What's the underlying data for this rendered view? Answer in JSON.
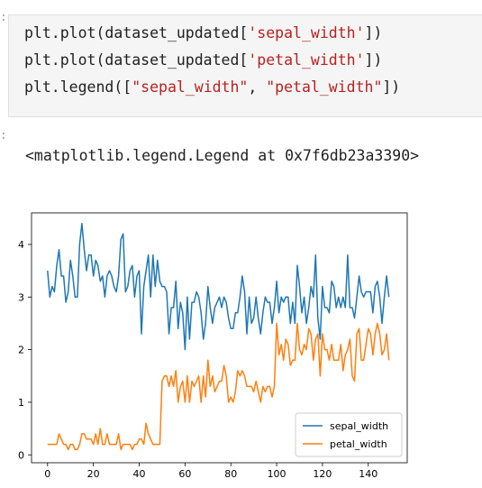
{
  "notebook": {
    "in_prompt": ":",
    "out_prompt": ":",
    "code_lines": [
      {
        "pre": "plt.plot(dataset_updated[",
        "str": "'sepal_width'",
        "post": "])"
      },
      {
        "pre": "plt.plot(dataset_updated[",
        "str": "'petal_width'",
        "post": "])"
      },
      {
        "pre": "plt.legend([",
        "str": "\"sepal_width\"",
        "mid": ", ",
        "str2": "\"petal_width\"",
        "post": "])"
      }
    ],
    "output_text": "<matplotlib.legend.Legend at 0x7f6db23a3390>"
  },
  "colors": {
    "string": "#ba2121",
    "series1": "#1f77b4",
    "series2": "#ff7f0e"
  },
  "chart_data": {
    "type": "line",
    "xlim": [
      -7,
      157
    ],
    "ylim": [
      -0.15,
      4.6
    ],
    "xticks": [
      0,
      20,
      40,
      60,
      80,
      100,
      120,
      140
    ],
    "yticks": [
      0,
      1,
      2,
      3,
      4
    ],
    "legend": "lower-right",
    "grid": false,
    "x": [
      0,
      1,
      2,
      3,
      4,
      5,
      6,
      7,
      8,
      9,
      10,
      11,
      12,
      13,
      14,
      15,
      16,
      17,
      18,
      19,
      20,
      21,
      22,
      23,
      24,
      25,
      26,
      27,
      28,
      29,
      30,
      31,
      32,
      33,
      34,
      35,
      36,
      37,
      38,
      39,
      40,
      41,
      42,
      43,
      44,
      45,
      46,
      47,
      48,
      49,
      50,
      51,
      52,
      53,
      54,
      55,
      56,
      57,
      58,
      59,
      60,
      61,
      62,
      63,
      64,
      65,
      66,
      67,
      68,
      69,
      70,
      71,
      72,
      73,
      74,
      75,
      76,
      77,
      78,
      79,
      80,
      81,
      82,
      83,
      84,
      85,
      86,
      87,
      88,
      89,
      90,
      91,
      92,
      93,
      94,
      95,
      96,
      97,
      98,
      99,
      100,
      101,
      102,
      103,
      104,
      105,
      106,
      107,
      108,
      109,
      110,
      111,
      112,
      113,
      114,
      115,
      116,
      117,
      118,
      119,
      120,
      121,
      122,
      123,
      124,
      125,
      126,
      127,
      128,
      129,
      130,
      131,
      132,
      133,
      134,
      135,
      136,
      137,
      138,
      139,
      140,
      141,
      142,
      143,
      144,
      145,
      146,
      147,
      148,
      149
    ],
    "series": [
      {
        "name": "sepal_width",
        "values": [
          3.5,
          3.0,
          3.2,
          3.1,
          3.6,
          3.9,
          3.4,
          3.4,
          2.9,
          3.1,
          3.7,
          3.4,
          3.0,
          3.0,
          4.0,
          4.4,
          3.9,
          3.5,
          3.8,
          3.8,
          3.4,
          3.7,
          3.6,
          3.3,
          3.4,
          3.0,
          3.4,
          3.5,
          3.4,
          3.2,
          3.1,
          3.4,
          4.1,
          4.2,
          3.1,
          3.2,
          3.5,
          3.6,
          3.0,
          3.4,
          3.5,
          2.3,
          3.2,
          3.5,
          3.8,
          3.0,
          3.8,
          3.2,
          3.7,
          3.3,
          3.2,
          3.2,
          3.1,
          2.3,
          2.8,
          2.8,
          3.3,
          2.4,
          2.9,
          2.7,
          2.0,
          3.0,
          2.2,
          2.9,
          2.9,
          3.1,
          3.0,
          2.7,
          2.2,
          2.5,
          3.2,
          2.8,
          2.5,
          2.8,
          2.9,
          3.0,
          2.8,
          3.0,
          2.9,
          2.6,
          2.4,
          2.4,
          2.7,
          2.7,
          3.0,
          3.4,
          3.1,
          2.3,
          3.0,
          2.5,
          2.6,
          3.0,
          2.6,
          2.3,
          2.7,
          3.0,
          2.9,
          2.9,
          2.5,
          2.8,
          3.3,
          2.7,
          3.0,
          2.9,
          3.0,
          3.0,
          2.5,
          2.9,
          2.5,
          3.6,
          3.2,
          2.7,
          3.0,
          2.5,
          2.8,
          3.2,
          3.0,
          3.8,
          2.6,
          2.2,
          3.2,
          2.8,
          2.8,
          2.7,
          3.3,
          3.2,
          2.8,
          3.0,
          2.8,
          3.0,
          2.8,
          3.8,
          2.8,
          2.8,
          2.6,
          3.0,
          3.4,
          3.1,
          3.0,
          3.1,
          3.1,
          3.1,
          2.7,
          3.2,
          3.3,
          3.0,
          2.5,
          3.0,
          3.4,
          3.0
        ]
      },
      {
        "name": "petal_width",
        "values": [
          0.2,
          0.2,
          0.2,
          0.2,
          0.2,
          0.4,
          0.3,
          0.2,
          0.2,
          0.1,
          0.2,
          0.2,
          0.1,
          0.1,
          0.2,
          0.4,
          0.4,
          0.3,
          0.3,
          0.3,
          0.2,
          0.4,
          0.2,
          0.5,
          0.2,
          0.2,
          0.4,
          0.2,
          0.2,
          0.2,
          0.2,
          0.4,
          0.1,
          0.2,
          0.2,
          0.2,
          0.2,
          0.1,
          0.2,
          0.2,
          0.3,
          0.3,
          0.2,
          0.6,
          0.4,
          0.3,
          0.2,
          0.2,
          0.2,
          0.2,
          1.4,
          1.5,
          1.5,
          1.3,
          1.5,
          1.3,
          1.6,
          1.0,
          1.3,
          1.4,
          1.0,
          1.5,
          1.0,
          1.4,
          1.3,
          1.4,
          1.5,
          1.0,
          1.5,
          1.1,
          1.8,
          1.3,
          1.5,
          1.2,
          1.3,
          1.4,
          1.4,
          1.7,
          1.5,
          1.0,
          1.1,
          1.0,
          1.2,
          1.6,
          1.5,
          1.6,
          1.5,
          1.3,
          1.3,
          1.3,
          1.2,
          1.4,
          1.2,
          1.0,
          1.3,
          1.2,
          1.3,
          1.3,
          1.1,
          1.3,
          2.5,
          1.9,
          2.1,
          1.8,
          2.2,
          2.1,
          1.7,
          1.8,
          1.8,
          2.5,
          2.0,
          1.9,
          2.1,
          2.0,
          2.4,
          2.3,
          1.8,
          2.2,
          2.3,
          1.5,
          2.3,
          2.0,
          2.0,
          1.8,
          2.1,
          1.8,
          1.8,
          1.8,
          2.1,
          1.6,
          1.9,
          2.0,
          2.2,
          1.5,
          1.4,
          2.3,
          2.4,
          1.8,
          1.8,
          2.1,
          2.4,
          2.3,
          1.9,
          2.3,
          2.5,
          2.3,
          1.9,
          2.0,
          2.3,
          1.8
        ]
      }
    ]
  }
}
